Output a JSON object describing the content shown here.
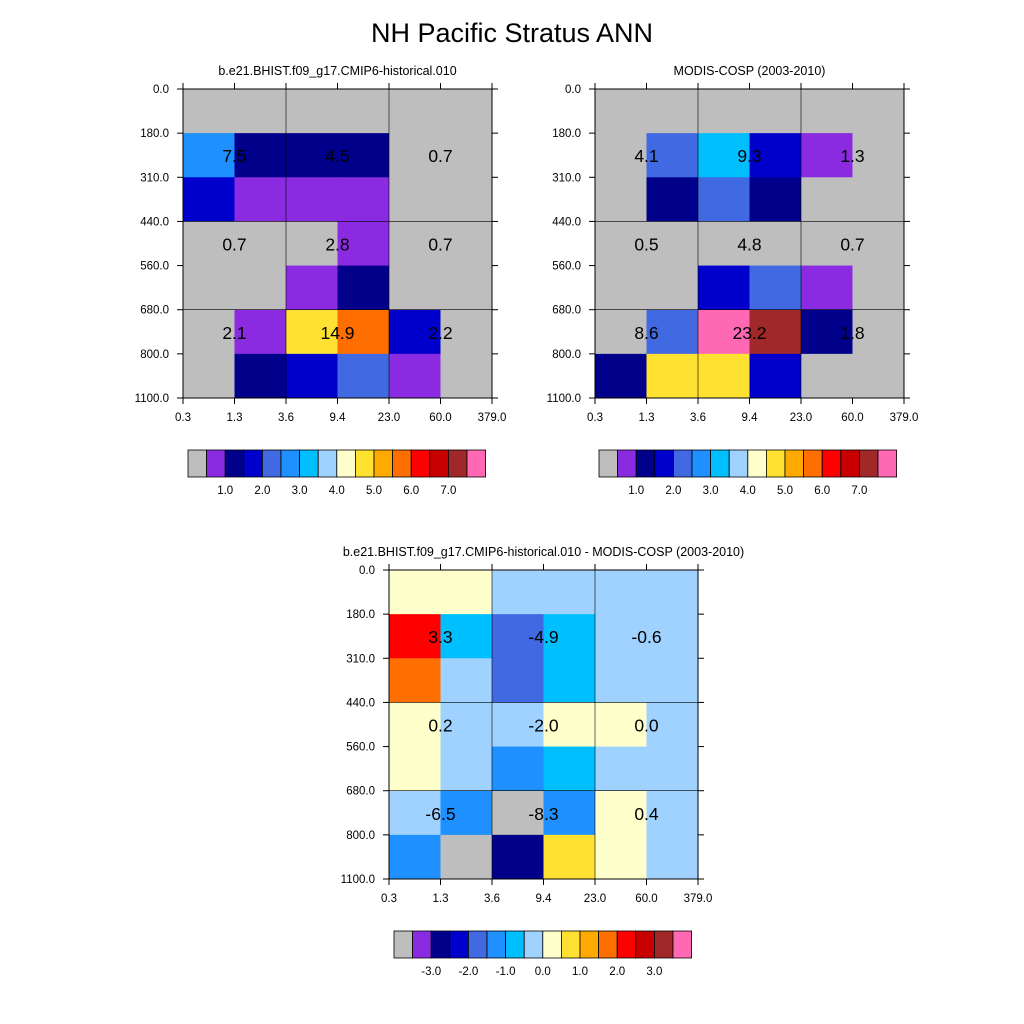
{
  "title": "NH Pacific Stratus ANN",
  "palettes": {
    "abs": [
      "#bebebe",
      "#8a2be2",
      "#00008b",
      "#0000cd",
      "#4169e1",
      "#1e90ff",
      "#00bfff",
      "#a0d2ff",
      "#ffffcc",
      "#ffe132",
      "#ffaa00",
      "#ff6e00",
      "#ff0000",
      "#c80000",
      "#a02828",
      "#ff69b4"
    ],
    "diff": [
      "#bebebe",
      "#8a2be2",
      "#00008b",
      "#0000cd",
      "#4169e1",
      "#1e90ff",
      "#00bfff",
      "#a0d2ff",
      "#ffffcc",
      "#ffe132",
      "#ffaa00",
      "#ff6e00",
      "#ff0000",
      "#c80000",
      "#a02828",
      "#ff69b4"
    ]
  },
  "chart_data": [
    {
      "type": "heatmap",
      "title": "b.e21.BHIST.f09_g17.CMIP6-historical.010",
      "x_tick_labels": [
        "0.3",
        "1.3",
        "3.6",
        "9.4",
        "23.0",
        "60.0",
        "379.0"
      ],
      "y_tick_labels": [
        "0.0",
        "180.0",
        "310.0",
        "440.0",
        "560.0",
        "680.0",
        "800.0",
        "1100.0"
      ],
      "cells": [
        [
          0,
          0,
          0,
          0,
          0,
          0
        ],
        [
          5,
          2,
          2,
          2,
          0,
          0
        ],
        [
          3,
          1,
          1,
          1,
          0,
          0
        ],
        [
          0,
          0,
          0,
          1,
          0,
          0
        ],
        [
          0,
          0,
          1,
          2,
          0,
          0
        ],
        [
          0,
          1,
          9,
          11,
          3,
          0
        ],
        [
          0,
          2,
          3,
          4,
          1,
          0
        ]
      ],
      "block_values": [
        [
          "7.5",
          "4.5",
          "0.7"
        ],
        [
          "0.7",
          "2.8",
          "0.7"
        ],
        [
          "2.1",
          "14.9",
          "2.2"
        ]
      ],
      "palette": "abs",
      "colorbar_labels": [
        "1.0",
        "2.0",
        "3.0",
        "4.0",
        "5.0",
        "6.0",
        "7.0"
      ]
    },
    {
      "type": "heatmap",
      "title": "MODIS-COSP (2003-2010)",
      "x_tick_labels": [
        "0.3",
        "1.3",
        "3.6",
        "9.4",
        "23.0",
        "60.0",
        "379.0"
      ],
      "y_tick_labels": [
        "0.0",
        "180.0",
        "310.0",
        "440.0",
        "560.0",
        "680.0",
        "800.0",
        "1100.0"
      ],
      "cells": [
        [
          0,
          0,
          0,
          0,
          0,
          0
        ],
        [
          0,
          4,
          6,
          3,
          1,
          0
        ],
        [
          0,
          2,
          4,
          2,
          0,
          0
        ],
        [
          0,
          0,
          0,
          0,
          0,
          0
        ],
        [
          0,
          0,
          3,
          4,
          1,
          0
        ],
        [
          0,
          4,
          15,
          14,
          2,
          0
        ],
        [
          2,
          9,
          9,
          3,
          0,
          0
        ]
      ],
      "block_values": [
        [
          "4.1",
          "9.3",
          "1.3"
        ],
        [
          "0.5",
          "4.8",
          "0.7"
        ],
        [
          "8.6",
          "23.2",
          "1.8"
        ]
      ],
      "palette": "abs",
      "colorbar_labels": [
        "1.0",
        "2.0",
        "3.0",
        "4.0",
        "5.0",
        "6.0",
        "7.0"
      ]
    },
    {
      "type": "heatmap",
      "title": "b.e21.BHIST.f09_g17.CMIP6-historical.010 - MODIS-COSP (2003-2010)",
      "x_tick_labels": [
        "0.3",
        "1.3",
        "3.6",
        "9.4",
        "23.0",
        "60.0",
        "379.0"
      ],
      "y_tick_labels": [
        "0.0",
        "180.0",
        "310.0",
        "440.0",
        "560.0",
        "680.0",
        "800.0",
        "1100.0"
      ],
      "cells": [
        [
          8,
          8,
          7,
          7,
          7,
          7
        ],
        [
          12,
          6,
          4,
          6,
          7,
          7
        ],
        [
          11,
          7,
          4,
          6,
          7,
          7
        ],
        [
          8,
          7,
          7,
          8,
          8,
          7
        ],
        [
          8,
          7,
          5,
          6,
          7,
          7
        ],
        [
          7,
          5,
          0,
          5,
          8,
          7
        ],
        [
          5,
          0,
          2,
          9,
          8,
          7
        ]
      ],
      "block_values": [
        [
          "3.3",
          "-4.9",
          "-0.6"
        ],
        [
          "0.2",
          "-2.0",
          "0.0"
        ],
        [
          "-6.5",
          "-8.3",
          "0.4"
        ]
      ],
      "palette": "diff",
      "colorbar_labels": [
        "-3.0",
        "-2.0",
        "-1.0",
        "0.0",
        "1.0",
        "2.0",
        "3.0"
      ]
    }
  ]
}
